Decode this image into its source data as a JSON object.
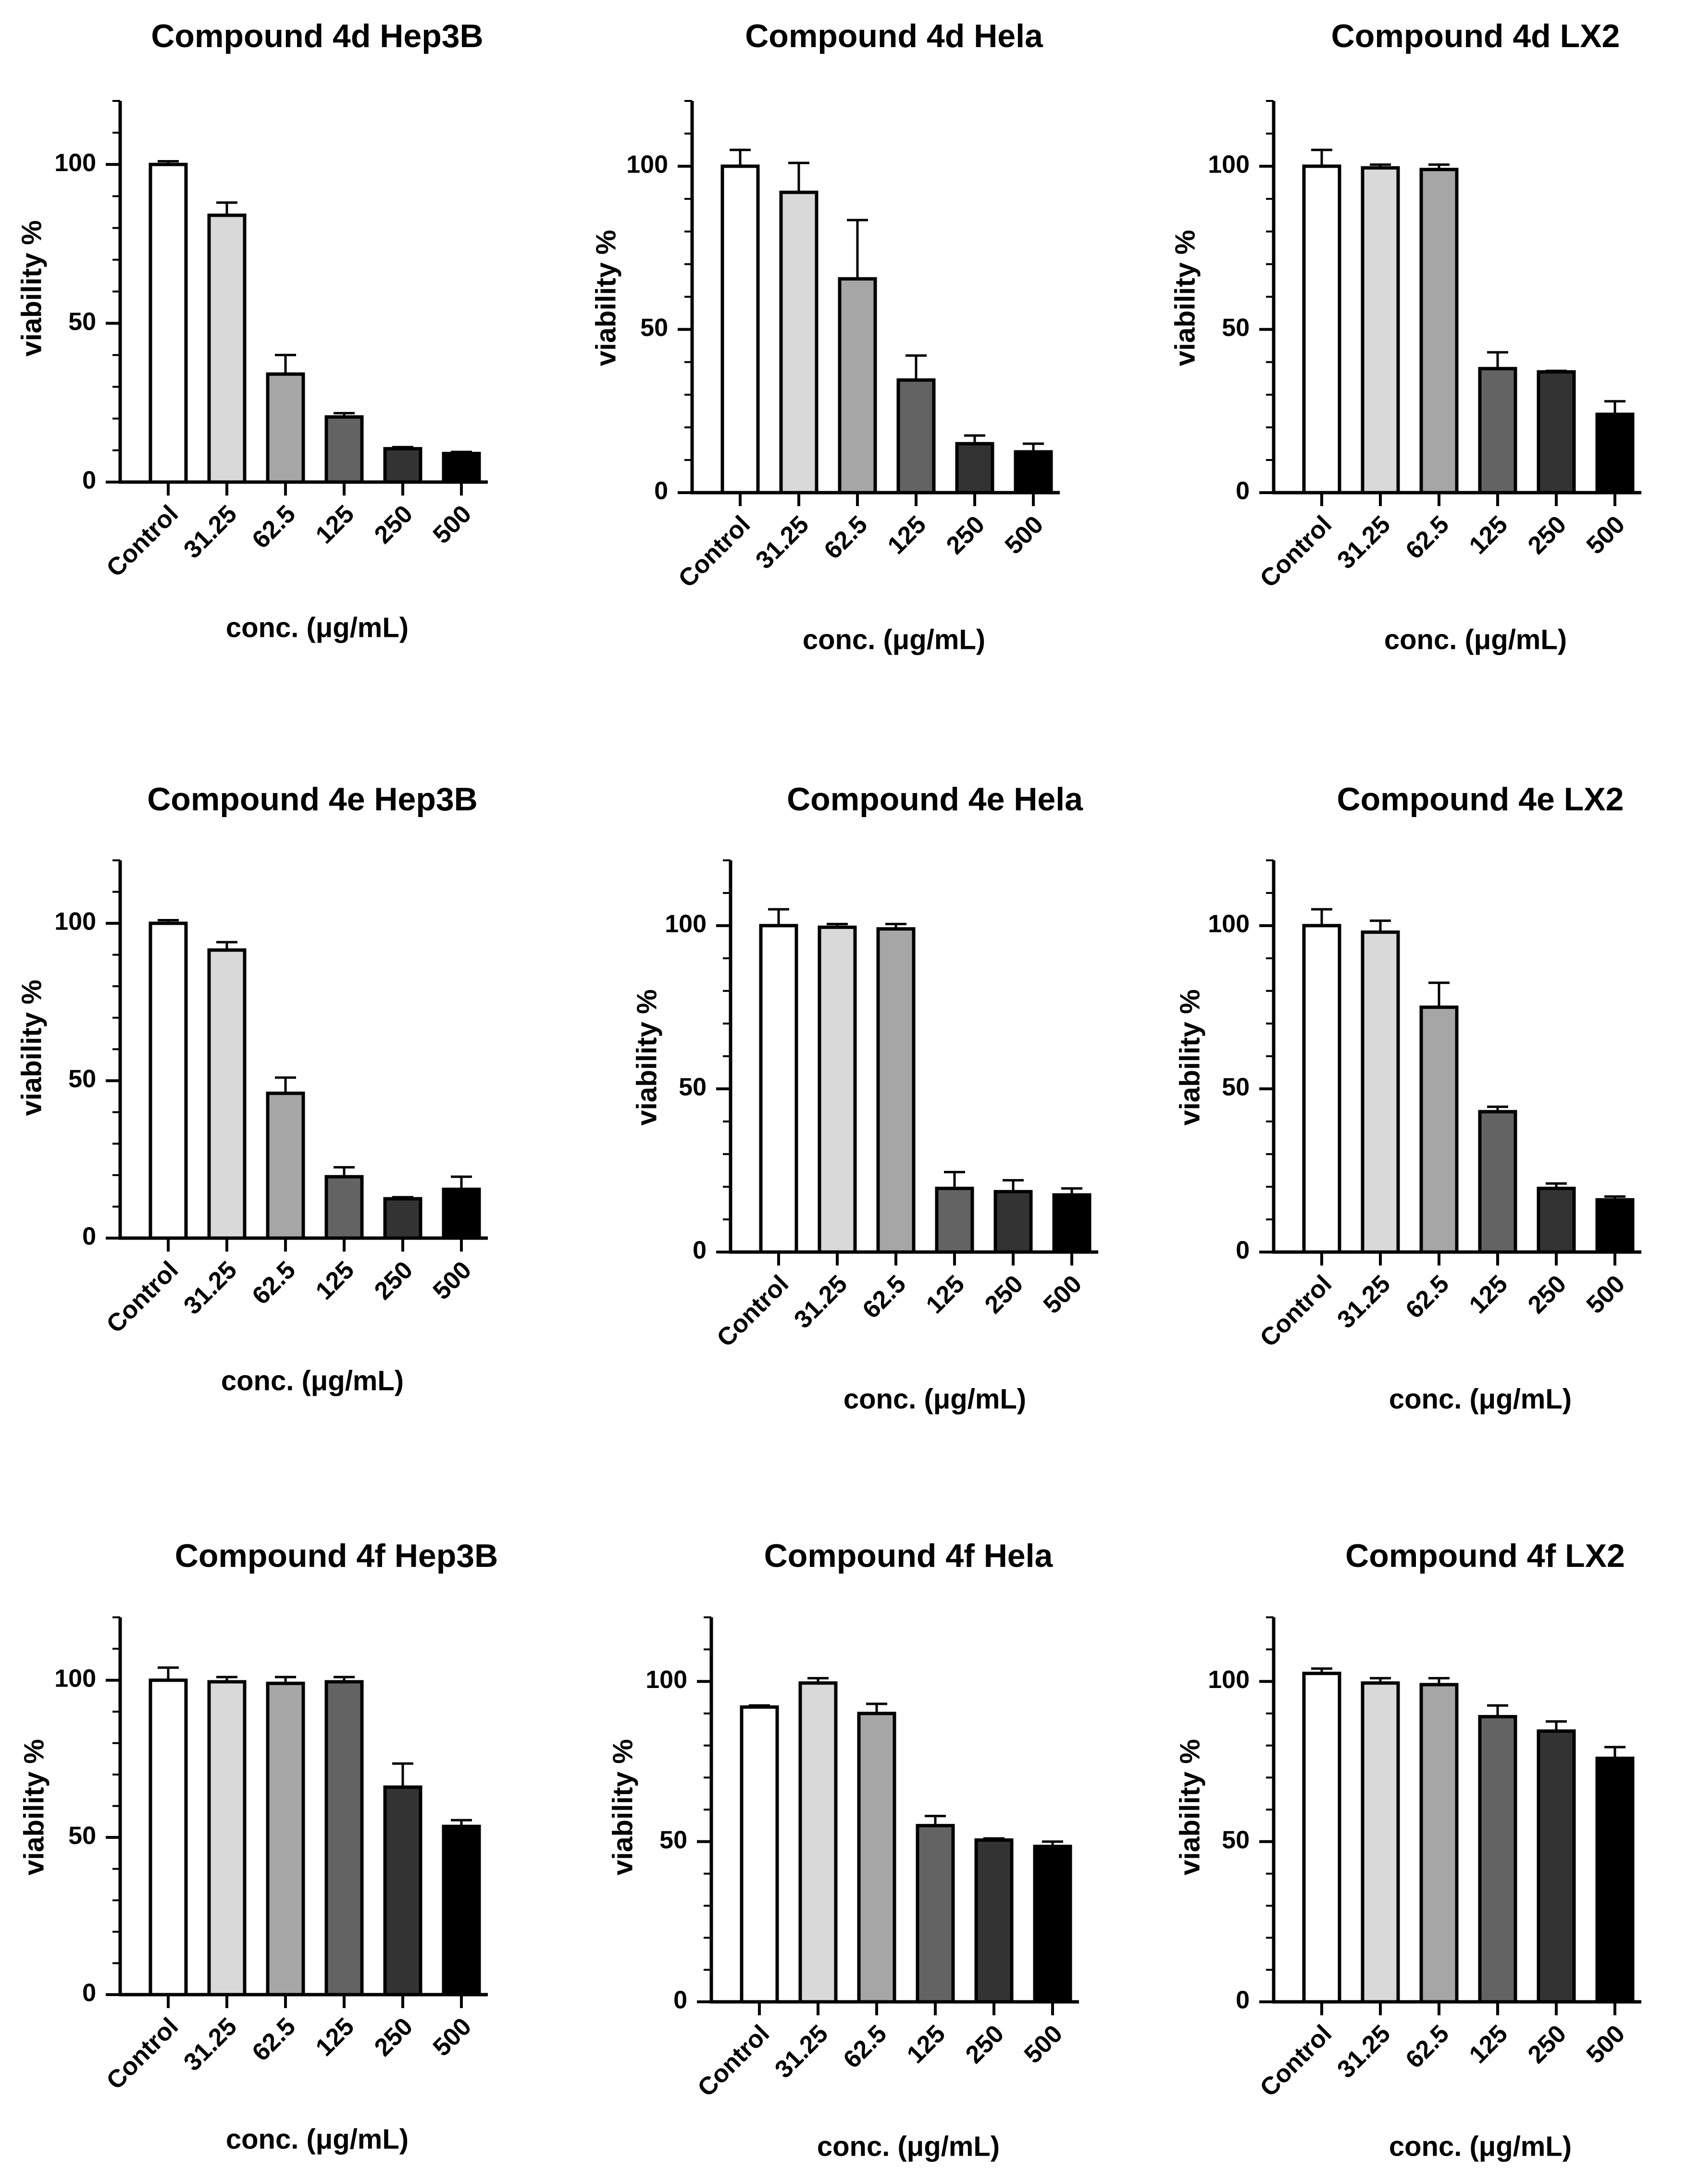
{
  "chart_data": [
    {
      "type": "bar",
      "title": "Compound 4d Hep3B",
      "xlabel": "conc. (μg/mL)",
      "ylabel": "viability %",
      "ylim": [
        0,
        120
      ],
      "yticks": [
        "0",
        "50",
        "100"
      ],
      "categories": [
        "Control",
        "31.25",
        "62.5",
        "125",
        "250",
        "500"
      ],
      "values": [
        100,
        84,
        34,
        20.5,
        10.5,
        9
      ],
      "errors": [
        1,
        4,
        6,
        1.2,
        0.5,
        0.5
      ],
      "colors": [
        "#ffffff",
        "#d9d9d9",
        "#a6a6a6",
        "#636363",
        "#333333",
        "#000000"
      ]
    },
    {
      "type": "bar",
      "title": "Compound 4d Hela",
      "xlabel": "conc. (μg/mL)",
      "ylabel": "viability %",
      "ylim": [
        0,
        120
      ],
      "yticks": [
        "0",
        "50",
        "100"
      ],
      "categories": [
        "Control",
        "31.25",
        "62.5",
        "125",
        "250",
        "500"
      ],
      "values": [
        100,
        92,
        65.5,
        34.5,
        15,
        12.5
      ],
      "errors": [
        5,
        9,
        18,
        7.5,
        2.5,
        2.5
      ],
      "colors": [
        "#ffffff",
        "#d9d9d9",
        "#a6a6a6",
        "#636363",
        "#333333",
        "#000000"
      ]
    },
    {
      "type": "bar",
      "title": "Compound 4d LX2",
      "xlabel": "conc. (μg/mL)",
      "ylabel": "viability %",
      "ylim": [
        0,
        120
      ],
      "yticks": [
        "0",
        "50",
        "100"
      ],
      "categories": [
        "Control",
        "31.25",
        "62.5",
        "125",
        "250",
        "500"
      ],
      "values": [
        100,
        99.5,
        99,
        38,
        37,
        24
      ],
      "errors": [
        5,
        1,
        1.5,
        5,
        0.3,
        4
      ],
      "colors": [
        "#ffffff",
        "#d9d9d9",
        "#a6a6a6",
        "#636363",
        "#333333",
        "#000000"
      ]
    },
    {
      "type": "bar",
      "title": "Compound 4e Hep3B",
      "xlabel": "conc. (μg/mL)",
      "ylabel": "viability %",
      "ylim": [
        0,
        120
      ],
      "yticks": [
        "0",
        "50",
        "100"
      ],
      "categories": [
        "Control",
        "31.25",
        "62.5",
        "125",
        "250",
        "500"
      ],
      "values": [
        100,
        91.5,
        46,
        19.5,
        12.5,
        15.5
      ],
      "errors": [
        1,
        2.5,
        5,
        3,
        0.5,
        4
      ],
      "colors": [
        "#ffffff",
        "#d9d9d9",
        "#a6a6a6",
        "#636363",
        "#333333",
        "#000000"
      ]
    },
    {
      "type": "bar",
      "title": "Compound 4e Hela",
      "xlabel": "conc. (μg/mL)",
      "ylabel": "viability %",
      "ylim": [
        0,
        120
      ],
      "yticks": [
        "0",
        "50",
        "100"
      ],
      "categories": [
        "Control",
        "31.25",
        "62.5",
        "125",
        "250",
        "500"
      ],
      "values": [
        100,
        99.5,
        99,
        19.5,
        18.5,
        17.5
      ],
      "errors": [
        5,
        1,
        1.5,
        5,
        3.5,
        2
      ],
      "colors": [
        "#ffffff",
        "#d9d9d9",
        "#a6a6a6",
        "#636363",
        "#333333",
        "#000000"
      ]
    },
    {
      "type": "bar",
      "title": "Compound 4e LX2",
      "xlabel": "conc. (μg/mL)",
      "ylabel": "viability %",
      "ylim": [
        0,
        120
      ],
      "yticks": [
        "0",
        "50",
        "100"
      ],
      "categories": [
        "Control",
        "31.25",
        "62.5",
        "125",
        "250",
        "500"
      ],
      "values": [
        100,
        98,
        75,
        43,
        19.5,
        16
      ],
      "errors": [
        5,
        3.5,
        7.5,
        1.5,
        1.5,
        1
      ],
      "colors": [
        "#ffffff",
        "#d9d9d9",
        "#a6a6a6",
        "#636363",
        "#333333",
        "#000000"
      ]
    },
    {
      "type": "bar",
      "title": "Compound 4f Hep3B",
      "xlabel": "conc. (μg/mL)",
      "ylabel": "viability %",
      "ylim": [
        0,
        120
      ],
      "yticks": [
        "0",
        "50",
        "100"
      ],
      "categories": [
        "Control",
        "31.25",
        "62.5",
        "125",
        "250",
        "500"
      ],
      "values": [
        100,
        99.5,
        99,
        99.5,
        66,
        53.5
      ],
      "errors": [
        4,
        1.5,
        2,
        1.5,
        7.5,
        2
      ],
      "colors": [
        "#ffffff",
        "#d9d9d9",
        "#a6a6a6",
        "#636363",
        "#333333",
        "#000000"
      ]
    },
    {
      "type": "bar",
      "title": "Compound 4f Hela",
      "xlabel": "conc. (μg/mL)",
      "ylabel": "viability %",
      "ylim": [
        0,
        120
      ],
      "yticks": [
        "0",
        "50",
        "100"
      ],
      "categories": [
        "Control",
        "31.25",
        "62.5",
        "125",
        "250",
        "500"
      ],
      "values": [
        92,
        99.5,
        90,
        55,
        50.5,
        48.5
      ],
      "errors": [
        0.5,
        1.5,
        3,
        3,
        0.5,
        1.5
      ],
      "colors": [
        "#ffffff",
        "#d9d9d9",
        "#a6a6a6",
        "#636363",
        "#333333",
        "#000000"
      ]
    },
    {
      "type": "bar",
      "title": "Compound 4f LX2",
      "xlabel": "conc. (μg/mL)",
      "ylabel": "viability %",
      "ylim": [
        0,
        120
      ],
      "yticks": [
        "0",
        "50",
        "100"
      ],
      "categories": [
        "Control",
        "31.25",
        "62.5",
        "125",
        "250",
        "500"
      ],
      "values": [
        102.5,
        99.5,
        99,
        89,
        84.5,
        76
      ],
      "errors": [
        1.5,
        1.5,
        2,
        3.5,
        3,
        3.5
      ],
      "colors": [
        "#ffffff",
        "#d9d9d9",
        "#a6a6a6",
        "#636363",
        "#333333",
        "#000000"
      ]
    }
  ]
}
